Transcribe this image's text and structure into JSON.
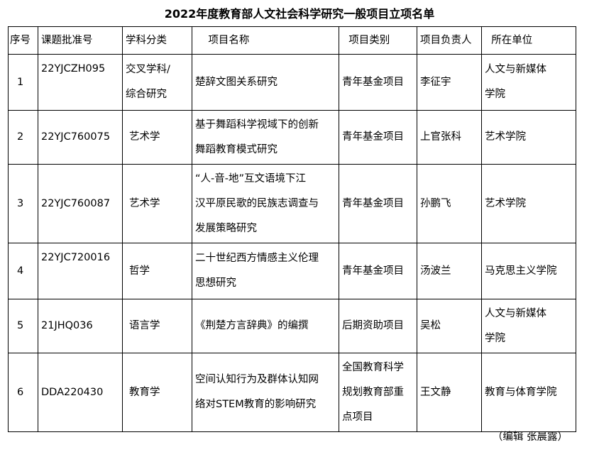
{
  "title": "2022年度教育部人文社会科学研究一般项目立项名单",
  "headers": [
    "序号",
    "课题批准号",
    "学科分类",
    "    项目名称",
    "  项目类别",
    "项目负责人",
    "  所在单位"
  ],
  "rows": [
    [
      "1",
      "22YJCZH095",
      "交叉学科/\n综合研究",
      "楚辞文图关系研究",
      "青年基金项目",
      "李征宇",
      "人文与新媒体\n学院"
    ],
    [
      "2",
      "22YJC760075",
      "艺术学",
      "基于舞蹈科学视域下的创新\n舞蹈教育模式研究",
      "青年基金项目",
      "上官张科",
      "艺术学院"
    ],
    [
      "3",
      "22YJC760087",
      "艺术学",
      " “人-音-地”互文语境下江\n汉平原民歌的民族志调查与\n发展策略研究",
      "青年基金项目",
      "孙鹏飞",
      "艺术学院"
    ],
    [
      "4",
      "22YJC720016",
      "哲学",
      "二十世纪西方情感主义伦理\n思想研究",
      "青年基金项目",
      "汤波兰",
      "马克思主义学院"
    ],
    [
      "5",
      "21JHQ036",
      "语言学",
      "《荆楚方言辞典》的编撰",
      "后期资助项目",
      "吴松",
      "人文与新媒体\n学院"
    ],
    [
      "6",
      "DDA220430",
      "教育学",
      "空间认知行为及群体认知网\n络对STEM教育的影响研究",
      "全国教育科学\n规划教育部重\n点项目",
      "王文静",
      "教育与体育学院"
    ]
  ],
  "footer": "（编辑 张晨露）"
}
